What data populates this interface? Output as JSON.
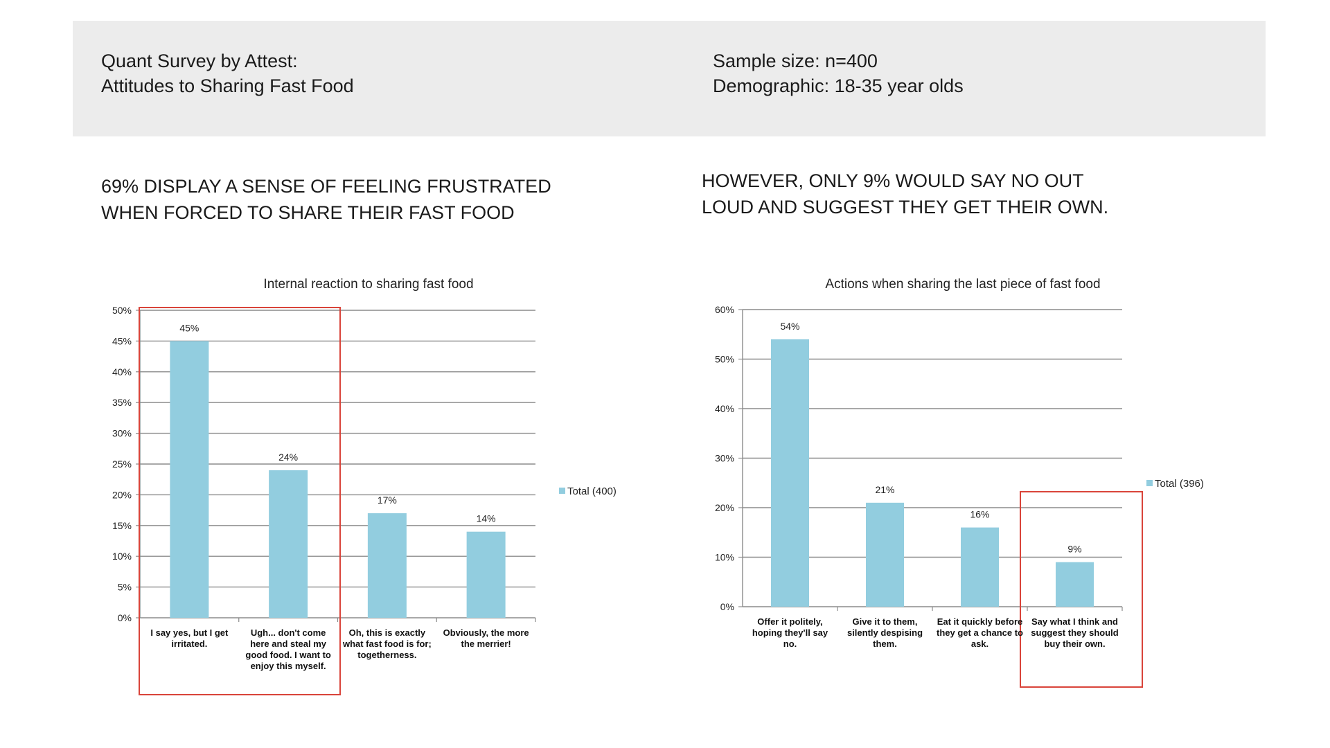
{
  "header": {
    "left_line1": "Quant Survey by Attest:",
    "left_line2": "Attitudes to Sharing Fast Food",
    "right_line1": "Sample size: n=400",
    "right_line2": "Demographic: 18-35 year olds"
  },
  "headlines": {
    "left_line1": "69% DISPLAY A SENSE OF FEELING FRUSTRATED",
    "left_line2": "WHEN FORCED TO SHARE THEIR FAST FOOD",
    "right_line1": "HOWEVER, ONLY 9% WOULD SAY NO OUT",
    "right_line2": "LOUD AND SUGGEST THEY GET THEIR OWN."
  },
  "colors": {
    "bar": "#92cddf",
    "grid": "#8c8c8c",
    "highlight": "#d9443a",
    "header_band": "#ececec"
  },
  "chart_data": [
    {
      "type": "bar",
      "title": "Internal reaction to sharing fast food",
      "categories": [
        "I say yes, but I get irritated.",
        "Ugh... don't come here and steal my good food. I want to enjoy this myself.",
        "Oh, this is exactly what fast food is for; togetherness.",
        "Obviously, the more the merrier!"
      ],
      "series": [
        {
          "name": "Total (400)",
          "values": [
            45,
            24,
            17,
            14
          ]
        }
      ],
      "data_labels": [
        "45%",
        "24%",
        "17%",
        "14%"
      ],
      "ylim": [
        0,
        50
      ],
      "yticks": [
        "0%",
        "5%",
        "10%",
        "15%",
        "20%",
        "25%",
        "30%",
        "35%",
        "40%",
        "45%",
        "50%"
      ],
      "grid": true,
      "legend": "right",
      "highlighted_categories": [
        0,
        1
      ]
    },
    {
      "type": "bar",
      "title": "Actions when sharing the last piece of fast food",
      "categories": [
        "Offer it politely, hoping they'll say no.",
        "Give it to them, silently despising them.",
        "Eat it quickly before they get a chance to ask.",
        "Say what I think and suggest they should buy their own."
      ],
      "series": [
        {
          "name": "Total (396)",
          "values": [
            54,
            21,
            16,
            9
          ]
        }
      ],
      "data_labels": [
        "54%",
        "21%",
        "16%",
        "9%"
      ],
      "ylim": [
        0,
        60
      ],
      "yticks": [
        "0%",
        "10%",
        "20%",
        "30%",
        "40%",
        "50%",
        "60%"
      ],
      "grid": true,
      "legend": "right",
      "highlighted_categories": [
        3
      ]
    }
  ]
}
